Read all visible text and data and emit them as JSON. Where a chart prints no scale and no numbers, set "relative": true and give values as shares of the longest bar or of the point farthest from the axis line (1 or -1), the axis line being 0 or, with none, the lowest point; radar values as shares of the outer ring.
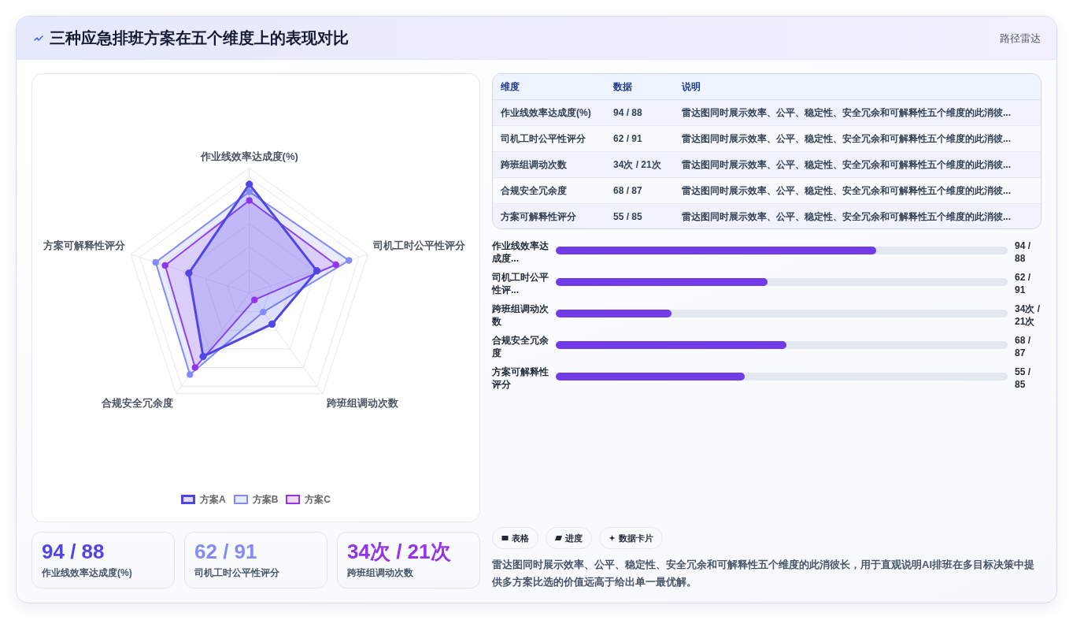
{
  "chart_data": [
    {
      "type": "other",
      "title": "三种应急排班方案在五个维度上的表现对比",
      "annotations": [
        "路径雷达"
      ]
    },
    {
      "type": "radar",
      "categories": [
        "作业线效率达成度(%)",
        "司机工时公平性评分",
        "跨班组调动次数",
        "合规安全冗余度",
        "方案可解释性评分"
      ],
      "relative": true,
      "grid": true,
      "legend": "bottom",
      "marker": "circle",
      "series": [
        {
          "name": "方案A",
          "color": "#4f46e5",
          "values": [
            0.87,
            0.57,
            0.31,
            0.63,
            0.51
          ]
        },
        {
          "name": "方案B",
          "color": "#818cf8",
          "values": [
            0.81,
            0.84,
            0.19,
            0.81,
            0.79
          ]
        },
        {
          "name": "方案C",
          "color": "#9333ea",
          "values": [
            0.74,
            0.73,
            0.07,
            0.74,
            0.71
          ]
        }
      ]
    },
    {
      "type": "other",
      "categories": [
        "作业线效率达成度(%)",
        "司机工时公平性评分",
        "跨班组调动次数",
        "合规安全冗余度",
        "方案可解释性评分"
      ],
      "value_labels": [
        "94 / 88",
        "62 / 91",
        "34次 / 21次",
        "68 / 87",
        "55 / 85"
      ],
      "annotations": [
        "维度",
        "数据",
        "说明",
        "雷达图同时展示效率、公平、稳定性、安全冗余和可解释性五个维度的此消彼...",
        "雷达图同时展示效率、公平、稳定性、安全冗余和可解释性五个维度的此消彼...",
        "雷达图同时展示效率、公平、稳定性、安全冗余和可解释性五个维度的此消彼...",
        "雷达图同时展示效率、公平、稳定性、安全冗余和可解释性五个维度的此消彼...",
        "雷达图同时展示效率、公平、稳定性、安全冗余和可解释性五个维度的此消彼..."
      ]
    },
    {
      "type": "bar",
      "orientation": "horizontal",
      "relative": true,
      "categories": [
        "作业线效率达成度...",
        "司机工时公平性评...",
        "跨班组调动次数",
        "合规安全冗余度",
        "方案可解释性评分"
      ],
      "values": [
        1,
        0.66,
        0.36,
        0.72,
        0.59
      ],
      "annotations": [
        "94 / 88",
        "62 / 91",
        "34次 / 21次",
        "68 / 87",
        "55 / 85"
      ],
      "color": "#713ce7"
    },
    {
      "type": "other",
      "categories": [
        "作业线效率达成度(%)",
        "司机工时公平性评分",
        "跨班组调动次数"
      ],
      "value_labels": [
        "94 / 88",
        "62 / 91",
        "34次 / 21次"
      ]
    },
    {
      "type": "other",
      "categories": [
        "表格",
        "进度",
        "数据卡片"
      ],
      "annotations": [
        "雷达图同时展示效率、公平、稳定性、安全冗余和可解释性五个维度的此消彼长，用于直观说明AI排班在多目标决策中提供多方案比选的价值远高于给出单一最优解。"
      ]
    }
  ]
}
